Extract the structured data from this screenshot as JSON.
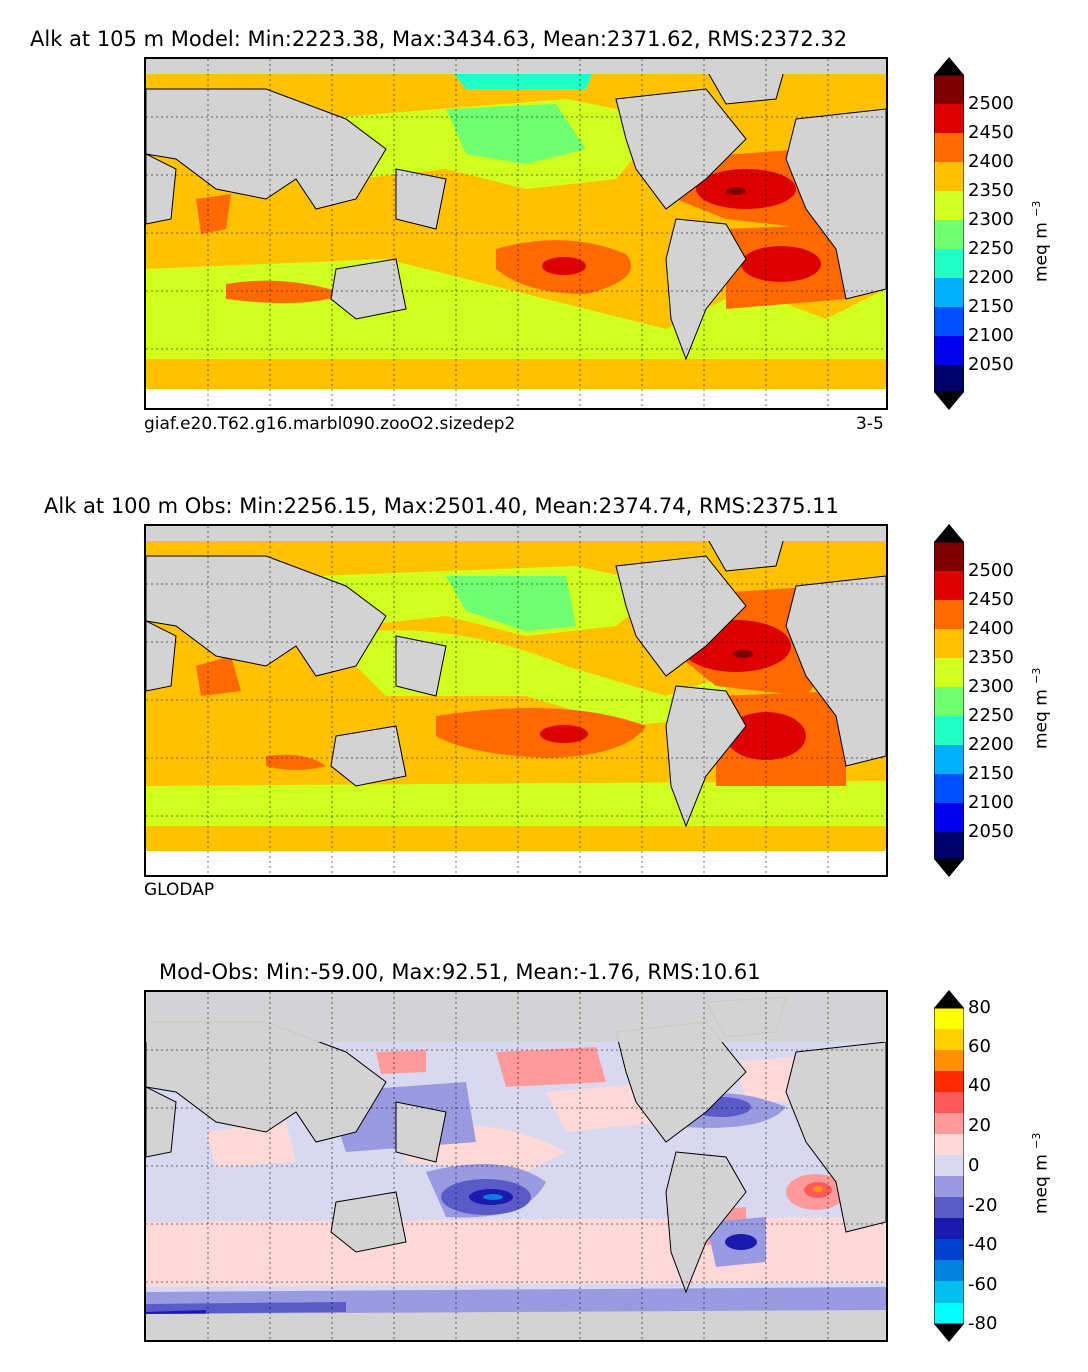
{
  "panels": [
    {
      "title": "Alk at 105 m Model: Min:2223.38, Max:3434.63, Mean:2371.62, RMS:2372.32",
      "subtitle_left": "giaf.e20.T62.g16.marbl090.zooO2.sizedep2",
      "subtitle_right": "3-5",
      "colorbar": {
        "unit": "meq m",
        "unit_exp": "−3",
        "ticks": [
          "2500",
          "2450",
          "2400",
          "2350",
          "2300",
          "2250",
          "2200",
          "2150",
          "2100",
          "2050"
        ],
        "colors": [
          "#800000",
          "#dc0000",
          "#ff6a00",
          "#ffc100",
          "#d0ff20",
          "#70ff70",
          "#20ffc8",
          "#00b0ff",
          "#0050ff",
          "#0000ee"
        ],
        "top_arrow": "#000000",
        "bottom_arrow": "#000000",
        "under_color": "#00006a"
      }
    },
    {
      "title": "Alk at 100 m Obs: Min:2256.15, Max:2501.40, Mean:2374.74, RMS:2375.11",
      "subtitle_left": "GLODAP",
      "subtitle_right": "",
      "colorbar": {
        "unit": "meq m",
        "unit_exp": "−3",
        "ticks": [
          "2500",
          "2450",
          "2400",
          "2350",
          "2300",
          "2250",
          "2200",
          "2150",
          "2100",
          "2050"
        ],
        "colors": [
          "#800000",
          "#dc0000",
          "#ff6a00",
          "#ffc100",
          "#d0ff20",
          "#70ff70",
          "#20ffc8",
          "#00b0ff",
          "#0050ff",
          "#0000ee"
        ],
        "top_arrow": "#000000",
        "bottom_arrow": "#000000",
        "under_color": "#00006a"
      }
    },
    {
      "title": "Mod-Obs: Min:-59.00, Max:92.51, Mean:-1.76, RMS:10.61",
      "subtitle_left": "",
      "subtitle_right": "",
      "colorbar": {
        "unit": "meq m",
        "unit_exp": "−3",
        "ticks": [
          "80",
          "60",
          "40",
          "20",
          "0",
          "-20",
          "-40",
          "-60",
          "-80"
        ],
        "colors": [
          "#ffff00",
          "#ffd000",
          "#ff9000",
          "#ff2a00",
          "#ff5a5a",
          "#ff9a9a",
          "#ffd8d8",
          "#d8d8f0",
          "#9a9ae0",
          "#5a5ac8",
          "#1a1ab0",
          "#0040d0",
          "#0080e0",
          "#00c0f0",
          "#00ffff"
        ],
        "top_arrow": "#000000",
        "bottom_arrow": "#000000"
      }
    }
  ]
}
